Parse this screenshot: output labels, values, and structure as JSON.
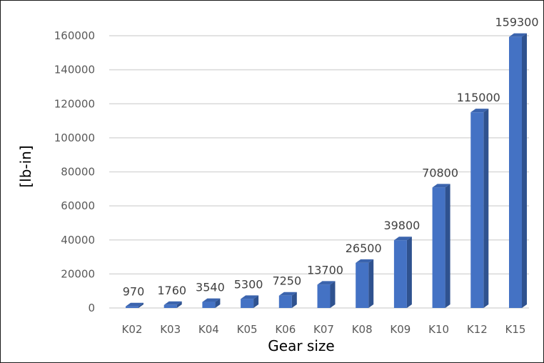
{
  "chart_data": {
    "type": "bar",
    "style": "3d-column",
    "categories": [
      "K02",
      "K03",
      "K04",
      "K05",
      "K06",
      "K07",
      "K08",
      "K09",
      "K10",
      "K12",
      "K15"
    ],
    "values": [
      970,
      1760,
      3540,
      5300,
      7250,
      13700,
      26500,
      39800,
      70800,
      115000,
      159300
    ],
    "data_labels": [
      "970",
      "1760",
      "3540",
      "5300",
      "7250",
      "13700",
      "26500",
      "39800",
      "70800",
      "115000",
      "159300"
    ],
    "title": "",
    "xlabel": "Gear size",
    "ylabel": "[lb-in]",
    "ylim": [
      0,
      160000
    ],
    "yticks": [
      "0",
      "20000",
      "40000",
      "60000",
      "80000",
      "100000",
      "120000",
      "140000",
      "160000"
    ],
    "grid": true,
    "legend": "none",
    "colors": {
      "front": "#4472C4",
      "side": "#2F528F",
      "top": "#3B64AE",
      "grid": "#D9D9D9",
      "tick_text": "#595959",
      "label_text": "#404040"
    }
  }
}
